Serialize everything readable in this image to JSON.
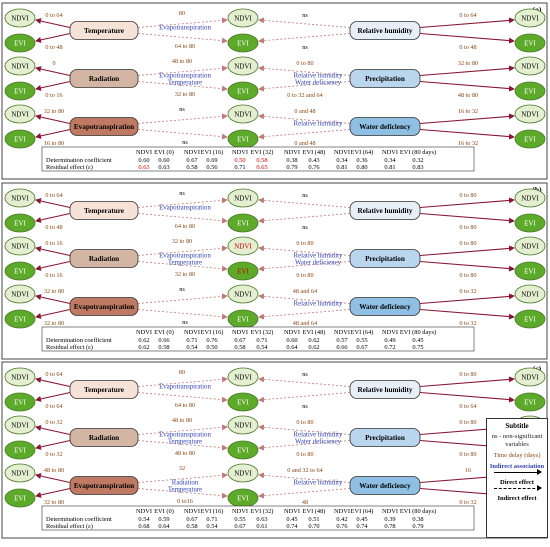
{
  "legend": {
    "title": "Subtitle",
    "ns": "ns - non-significant variables",
    "time_delay": "Time delay (days)",
    "indirect": "Indirect association",
    "direct_effect": "Direct effect",
    "indirect_effect": "Indirect effect"
  },
  "table_headers": [
    "NDVI",
    "EVI (0)",
    "NDVI",
    "EVI (16)",
    "NDVI",
    "EVI (32)",
    "NDVI",
    "EVI (48)",
    "NDVI",
    "EVI (64)",
    "NDVI",
    "EVI (80 days)"
  ],
  "row_labels": {
    "det": "Determination coefficient",
    "res": "Residual effect (ε)"
  },
  "colors": {
    "ndvi": "#e3efd0",
    "evi": "#5daa2a",
    "temp": "#f6e2d6",
    "rad": "#d2b6a3",
    "evap": "#c07a63",
    "rh": "#e6eef8",
    "prec": "#b9d6ee",
    "wd": "#8fc0e4",
    "direct": "#8b1535",
    "indirect_lbl": "#2f3fb0",
    "delay": "#8b4513"
  },
  "panels": [
    {
      "id": "(a)",
      "left": [
        {
          "name": "Temperature",
          "color": "temp",
          "top": "0 to 64",
          "bottom": "0 to 48"
        },
        {
          "name": "Radiation",
          "color": "rad",
          "top": "0",
          "bottom": "0 to 16"
        },
        {
          "name": "Evapotranspiration",
          "color": "evap",
          "top": "32 to 80",
          "bottom": "16 to 80"
        }
      ],
      "right": [
        {
          "name": "Relative humidity",
          "color": "rh",
          "top": "0 to 64",
          "bottom": "0 to 48"
        },
        {
          "name": "Precipitation",
          "color": "prec",
          "top": "32 to 80",
          "bottom": "48 to 80"
        },
        {
          "name": "Water deficiency",
          "color": "wd",
          "top": "16 to 32",
          "bottom": "16 to 32"
        }
      ],
      "mid": [
        {
          "t1": "80",
          "b1": "Evapotranspiration",
          "t2": "64 to 80",
          "rtop": "ns",
          "rbot": "ns",
          "rind": ""
        },
        {
          "t1": "48 to 80",
          "b1": "Evapotranspiration",
          "b2": "Temperature",
          "t2": "32 to 80",
          "rtop": "0 to 80",
          "rind1": "Relative humidity",
          "rind2": "Water deficiency",
          "rbot": "0 to 32 and 64"
        },
        {
          "t1": "ns",
          "b1": "",
          "t2": "ns",
          "rtop": "0 and 48",
          "rind1": "Relative humidity",
          "rbot": "0 and 48"
        }
      ],
      "ndvi_red": [],
      "evi_red": [],
      "det": [
        "0.60",
        "0.60",
        "0.67",
        "0.69",
        "0.50",
        "0.58",
        "0.38",
        "0.43",
        "0.34",
        "0.36",
        "0.34",
        "0.32"
      ],
      "res": [
        "0.63",
        "0.63",
        "0.58",
        "0.56",
        "0.71",
        "0.65",
        "0.79",
        "0.76",
        "0.81",
        "0.80",
        "0.81",
        "0.83"
      ],
      "det_red": [
        4,
        5
      ],
      "res_red": [
        0,
        5
      ]
    },
    {
      "id": "(b)",
      "left": [
        {
          "name": "Temperature",
          "color": "temp",
          "top": "0 to 64",
          "bottom": "0 to 48"
        },
        {
          "name": "Radiation",
          "color": "rad",
          "top": "0 to 16",
          "bottom": "0 to 16"
        },
        {
          "name": "Evapotranspiration",
          "color": "evap",
          "top": "32 to 80",
          "bottom": "32 to 80"
        }
      ],
      "right": [
        {
          "name": "Relative humidity",
          "color": "rh",
          "top": "0 to 80",
          "bottom": "0 to 80"
        },
        {
          "name": "Precipitation",
          "color": "prec",
          "top": "0 to 80",
          "bottom": "0 to 80"
        },
        {
          "name": "Water deficiency",
          "color": "wd",
          "top": "0 to 32",
          "bottom": "0 to 32"
        }
      ],
      "mid": [
        {
          "t1": "ns",
          "b1": "Evapotranspiration",
          "t2": "64 to 80",
          "rtop": "ns",
          "rbot": "ns"
        },
        {
          "t1": "32 to 80",
          "b1": "Evapotranspiration",
          "b2": "Temperature",
          "t2": "32 to 80",
          "rtop": "0 to 80",
          "rind1": "Relative humidity",
          "rind2": "Water deficiency",
          "rbot": "0 to 80"
        },
        {
          "t1": "ns",
          "b1": "",
          "t2": "ns",
          "rtop": "48 and 64",
          "rind1": "Relative humidity",
          "rbot": "48 and 64"
        }
      ],
      "det": [
        "0.62",
        "0.66",
        "0.71",
        "0.76",
        "0.67",
        "0.71",
        "0.60",
        "0.62",
        "0.57",
        "0.55",
        "0.49",
        "0.45"
      ],
      "res": [
        "0.62",
        "0.58",
        "0.54",
        "0.50",
        "0.58",
        "0.54",
        "0.64",
        "0.62",
        "0.66",
        "0.67",
        "0.72",
        "0.75"
      ],
      "det_red": [],
      "res_red": []
    },
    {
      "id": "(c)",
      "left": [
        {
          "name": "Temperature",
          "color": "temp",
          "top": "0 to 64",
          "bottom": "0 to 64"
        },
        {
          "name": "Radiation",
          "color": "rad",
          "top": "0 to 32",
          "bottom": "0 to 32"
        },
        {
          "name": "Evapotranspiration",
          "color": "evap",
          "top": "48 to 80",
          "bottom": "32 to 80"
        }
      ],
      "right": [
        {
          "name": "Relative humidity",
          "color": "rh",
          "top": "0 to 80",
          "bottom": "0 to 64"
        },
        {
          "name": "Precipitation",
          "color": "prec",
          "top": "0 to 80",
          "bottom": "0 to 80"
        },
        {
          "name": "Water deficiency",
          "color": "wd",
          "top": "16",
          "bottom": "0 to 32"
        }
      ],
      "mid": [
        {
          "t1": "80",
          "b1": "Evapotranspiration",
          "t2": "64 to 80",
          "rtop": "ns",
          "rbot": "ns"
        },
        {
          "t1": "48 to 80",
          "b1": "Evapotranspiration",
          "b2": "Temperature",
          "t2": "48 to 80",
          "rtop": "0 to 80",
          "rind1": "Relative humidity",
          "rind2": "Water deficiency",
          "rbot": "0 to 80"
        },
        {
          "t1": "32",
          "b1": "Radiation",
          "b2": "Temperature",
          "t2": "0 to16",
          "rtop": "0 and 32 to 64",
          "rind1": "Relative humidity",
          "rbot": "48"
        }
      ],
      "det": [
        "0.54",
        "0.59",
        "0.67",
        "0.71",
        "0.55",
        "0.63",
        "0.45",
        "0.51",
        "0.42",
        "0.45",
        "0.39",
        "0.38"
      ],
      "res": [
        "0.68",
        "0.64",
        "0.58",
        "0.54",
        "0.67",
        "0.61",
        "0.74",
        "0.70",
        "0.76",
        "0.74",
        "0.78",
        "0.79"
      ],
      "det_red": [],
      "res_red": []
    }
  ],
  "ns_label": "ns"
}
